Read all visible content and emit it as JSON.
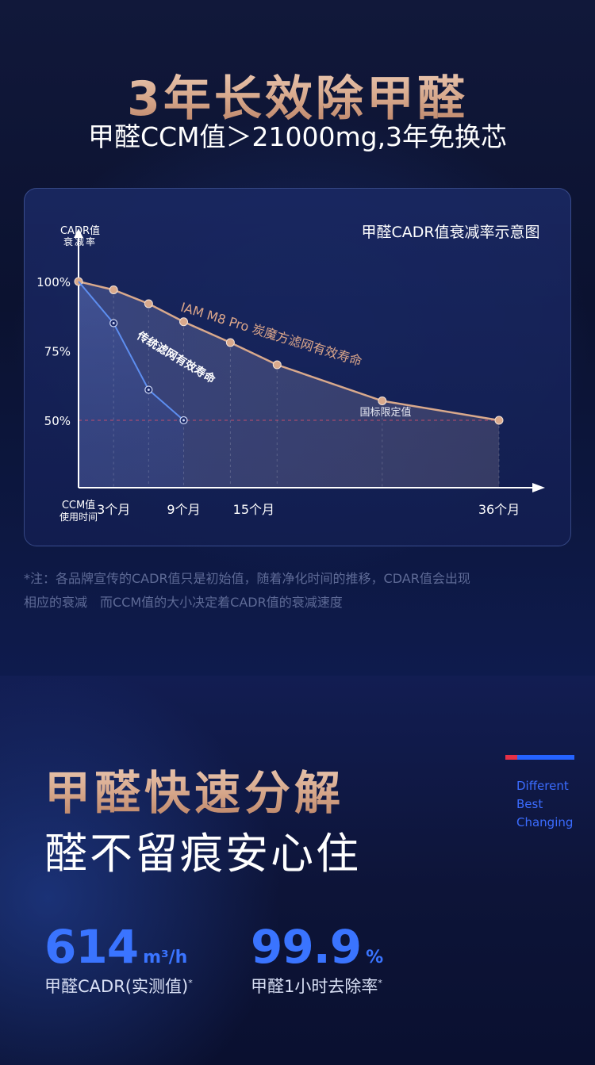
{
  "header": {
    "title": "3年长效除甲醛",
    "subtitle": "甲醛CCM值＞21000mg,3年免换芯"
  },
  "chart_data": {
    "type": "line",
    "title": "甲醛CADR值衰减率示意图",
    "ylabel": [
      "CADR值",
      "衰减率"
    ],
    "xlabel": [
      "CCM值",
      "使用时间"
    ],
    "yticks": [
      "100%",
      "75%",
      "50%"
    ],
    "xticks": [
      {
        "x": 3,
        "label": "3个月"
      },
      {
        "x": 9,
        "label": "9个月"
      },
      {
        "x": 15,
        "label": "15个月"
      },
      {
        "x": 36,
        "label": "36个月"
      }
    ],
    "ylim": [
      38,
      105
    ],
    "reference_line": {
      "y": 50,
      "label": "国标限定值"
    },
    "series": [
      {
        "name": "IAM M8 Pro 炭魔方滤网有效寿命",
        "color": "#d9a98c",
        "points": [
          [
            0,
            100
          ],
          [
            3,
            97
          ],
          [
            6,
            92
          ],
          [
            9,
            85.5
          ],
          [
            13,
            78
          ],
          [
            17,
            70
          ],
          [
            26,
            57
          ],
          [
            36,
            50
          ]
        ]
      },
      {
        "name": "传统滤网有效寿命",
        "color": "#5d8ef0",
        "points": [
          [
            0,
            100
          ],
          [
            3,
            85
          ],
          [
            6,
            61
          ],
          [
            9,
            50
          ]
        ]
      }
    ]
  },
  "footnote": {
    "line1": "*注：各品牌宣传的CADR值只是初始值，随着净化时间的推移，CDAR值会出现",
    "line2": "相应的衰减　而CCM值的大小决定着CADR值的衰减速度"
  },
  "section2": {
    "title": "甲醛快速分解",
    "subtitle": "醛不留痕安心住",
    "tagline": [
      "Different",
      "Best",
      "Changing"
    ],
    "stats": [
      {
        "value": "614",
        "unit": "m³/h",
        "label": "甲醛CADR(实测值)",
        "mark": "*"
      },
      {
        "value": "99.9",
        "unit": "%",
        "label": "甲醛1小时去除率",
        "mark": "*"
      }
    ]
  },
  "colors": {
    "gold": "#d6a78b",
    "accent_blue": "#3a74ff",
    "accent_red": "#e63046"
  }
}
